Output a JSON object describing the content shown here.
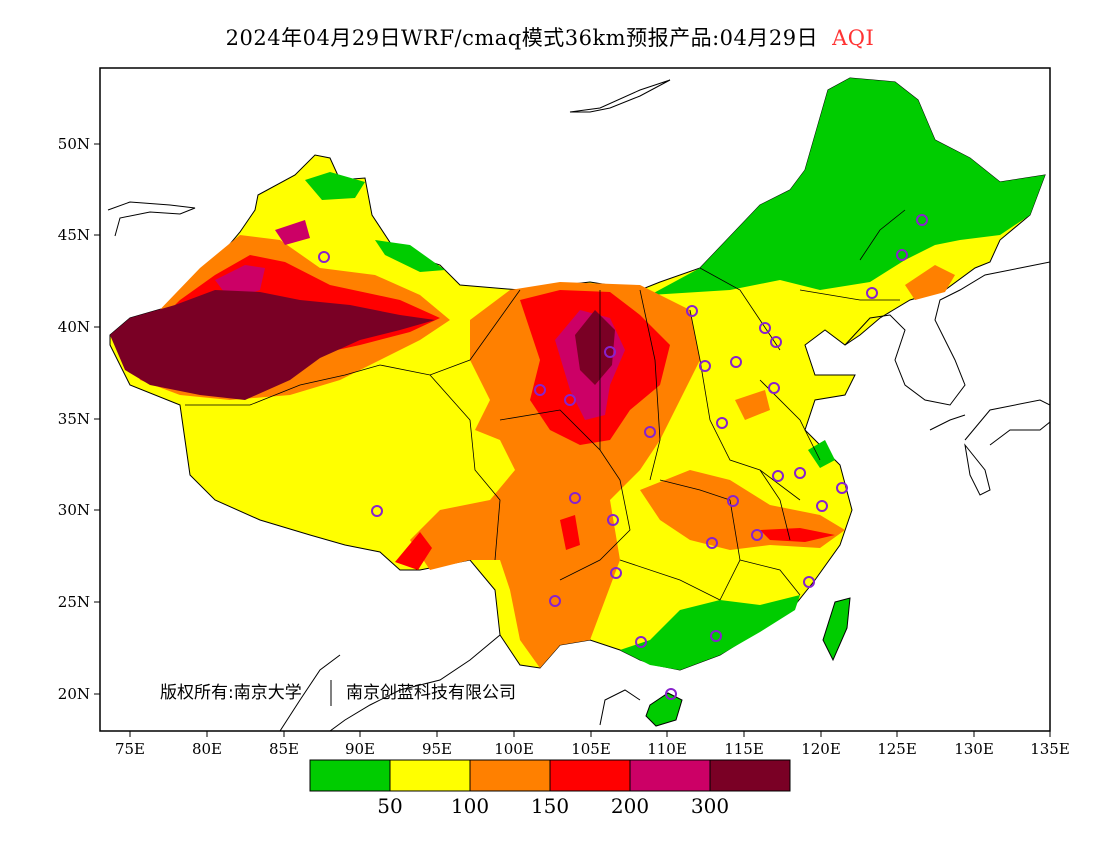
{
  "title": {
    "main": "2024年04月29日WRF/cmaq模式36km预报产品:04月29日",
    "variable": "AQI"
  },
  "axes": {
    "lat_labels": [
      "20N",
      "25N",
      "30N",
      "35N",
      "40N",
      "45N",
      "50N"
    ],
    "lon_labels": [
      "75E",
      "80E",
      "85E",
      "90E",
      "95E",
      "100E",
      "105E",
      "110E",
      "115E",
      "120E",
      "125E",
      "130E",
      "135E"
    ]
  },
  "copyright": {
    "left": "版权所有:南京大学",
    "right": "南京创蓝科技有限公司"
  },
  "legend": {
    "colors": [
      "#00cc00",
      "#ffff00",
      "#ff8000",
      "#ff0000",
      "#cc0066",
      "#7a0025"
    ],
    "labels": [
      "50",
      "100",
      "150",
      "200",
      "300"
    ]
  },
  "colors": {
    "good": "#00cc00",
    "moderate": "#ffff00",
    "usg": "#ff8000",
    "unhealthy": "#ff0000",
    "very_unhealthy": "#cc0066",
    "hazardous": "#7a0025",
    "station_marker": "#8822cc"
  }
}
